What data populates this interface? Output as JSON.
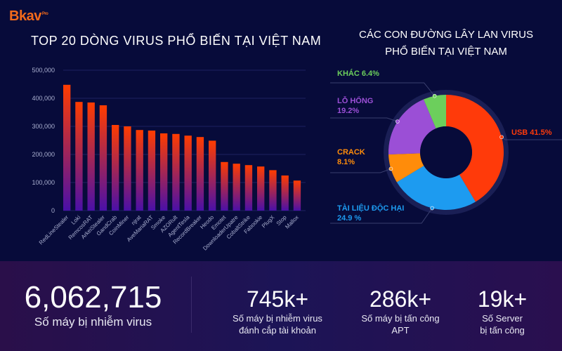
{
  "logo": {
    "brand": "Bkav",
    "suffix": "Pro"
  },
  "colors": {
    "bar_top": "#ff3c00",
    "bar_bottom": "#4a10a8",
    "background": "#070b3a",
    "logo": "#f26a1b"
  },
  "chart_data": [
    {
      "type": "bar",
      "title": "TOP 20 DÒNG VIRUS PHỔ BIẾN TẠI VIỆT NAM",
      "categories": [
        "RedLineStealer",
        "Loki",
        "RemcosRAT",
        "ArkeiStealer",
        "GandCrab",
        "CoinMiner",
        "njrat",
        "AveMariaRAT",
        "Smoke",
        "AZORult",
        "AgentTesla",
        "RecordBreaker",
        "Heodo",
        "Emotet",
        "DownloaderUpatre",
        "CobaltStrike",
        "Fabookie",
        "PlugX",
        "Stop",
        "Mallox"
      ],
      "values": [
        448000,
        387000,
        385000,
        375000,
        305000,
        300000,
        287000,
        285000,
        275000,
        273000,
        267000,
        262000,
        249000,
        173000,
        167000,
        162000,
        157000,
        144000,
        125000,
        107000
      ],
      "ylim": [
        0,
        500000
      ],
      "yticks": [
        "0",
        "100,000",
        "200,000",
        "300,000",
        "400,000",
        "500,000"
      ],
      "grid": true
    },
    {
      "type": "pie",
      "title_line1": "CÁC CON ĐƯỜNG LÂY LAN VIRUS",
      "title_line2": "PHỔ BIẾN TẠI VIỆT NAM",
      "donut": true,
      "slices": [
        {
          "label": "USB",
          "value": 41.5,
          "text": "41.5%",
          "color": "#ff3a0a"
        },
        {
          "label": "TÀI LIỆU ĐỘC HẠI",
          "value": 24.9,
          "text": "24.9 %",
          "color": "#1d9bf0"
        },
        {
          "label": "CRACK",
          "value": 8.1,
          "text": "8.1%",
          "color": "#ff8c0a"
        },
        {
          "label": "LỖ HỔNG",
          "value": 19.2,
          "text": "19.2%",
          "color": "#9b4fd6"
        },
        {
          "label": "KHÁC",
          "value": 6.4,
          "text": "6.4%",
          "color": "#6ccf5c"
        }
      ]
    }
  ],
  "stats": [
    {
      "number": "6,062,715",
      "line1": "Số máy bị nhiễm virus",
      "line2": ""
    },
    {
      "number": "745k+",
      "line1": "Số máy bị nhiễm virus",
      "line2": "đánh cắp tài khoản"
    },
    {
      "number": "286k+",
      "line1": "Số máy bị tấn công",
      "line2": "APT"
    },
    {
      "number": "19k+",
      "line1": "Số Server",
      "line2": "bị tấn công"
    }
  ]
}
